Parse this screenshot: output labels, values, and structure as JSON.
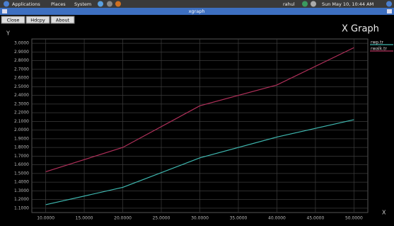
{
  "top_bar": {
    "menus": [
      "Applications",
      "Places",
      "System"
    ],
    "user": "rahul",
    "clock": "Sun May 10, 10:44 AM"
  },
  "window": {
    "title": "xgraph",
    "buttons": [
      "Close",
      "Hdcpy",
      "About"
    ],
    "app_title": "X Graph"
  },
  "chart_data": {
    "type": "line",
    "y_label": "Y",
    "x_label": "X",
    "x": [
      10,
      20,
      30,
      40,
      50
    ],
    "series": [
      {
        "name": "rwp.tr",
        "color": "#3fb8b0",
        "values": [
          1.14,
          1.34,
          1.68,
          1.92,
          2.12
        ]
      },
      {
        "name": "rwalk.tr",
        "color": "#b0305a",
        "values": [
          1.52,
          1.8,
          2.28,
          2.52,
          2.95
        ]
      }
    ],
    "xlim": [
      8.2,
      51.8
    ],
    "ylim": [
      1.05,
      3.05
    ],
    "grid": true,
    "xticks": [
      {
        "value": 10,
        "label": "10.0000"
      },
      {
        "value": 15,
        "label": "15.0000"
      },
      {
        "value": 20,
        "label": "20.0000"
      },
      {
        "value": 25,
        "label": "25.0000"
      },
      {
        "value": 30,
        "label": "30.0000"
      },
      {
        "value": 35,
        "label": "35.0000"
      },
      {
        "value": 40,
        "label": "40.0000"
      },
      {
        "value": 45,
        "label": "45.0000"
      },
      {
        "value": 50,
        "label": "50.0000"
      }
    ],
    "yticks": [
      {
        "value": 1.1,
        "label": "1.1000"
      },
      {
        "value": 1.2,
        "label": "1.2000"
      },
      {
        "value": 1.3,
        "label": "1.3000"
      },
      {
        "value": 1.4,
        "label": "1.4000"
      },
      {
        "value": 1.5,
        "label": "1.5000"
      },
      {
        "value": 1.6,
        "label": "1.6000"
      },
      {
        "value": 1.7,
        "label": "1.7000"
      },
      {
        "value": 1.8,
        "label": "1.8000"
      },
      {
        "value": 1.9,
        "label": "1.9000"
      },
      {
        "value": 2.0,
        "label": "2.0000"
      },
      {
        "value": 2.1,
        "label": "2.1000"
      },
      {
        "value": 2.2,
        "label": "2.2000"
      },
      {
        "value": 2.3,
        "label": "2.3000"
      },
      {
        "value": 2.4,
        "label": "2.4000"
      },
      {
        "value": 2.5,
        "label": "2.5000"
      },
      {
        "value": 2.6,
        "label": "2.6000"
      },
      {
        "value": 2.7,
        "label": "2.7000"
      },
      {
        "value": 2.8,
        "label": "2.8000"
      },
      {
        "value": 2.9,
        "label": "2.9000"
      },
      {
        "value": 3.0,
        "label": "3.0000"
      }
    ]
  }
}
